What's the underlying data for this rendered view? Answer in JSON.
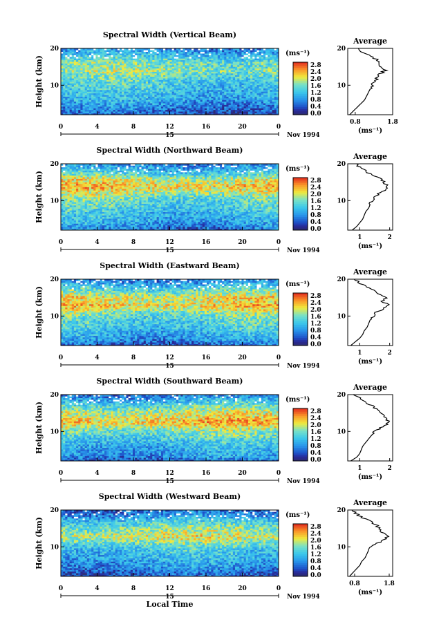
{
  "chart_data": [
    {
      "type": "heatmap",
      "title": "Spectral Width (Vertical Beam)",
      "ylabel": "Height (km)",
      "x_ticks": [
        "0",
        "4",
        "8",
        "12",
        "16",
        "20",
        "0"
      ],
      "date_day": "15",
      "date_label": "Nov 1994",
      "xlim": [
        0,
        24
      ],
      "ylim": [
        2,
        20
      ],
      "y_ticks": [
        "20",
        "10"
      ],
      "colorbar": {
        "unit": "(ms⁻¹)",
        "ticks": [
          "2.8",
          "2.4",
          "2.0",
          "1.6",
          "1.2",
          "0.8",
          "0.4",
          "0.0"
        ]
      },
      "profile": {
        "title": "Average",
        "xlabel": "(ms⁻¹)",
        "x_ticks": [
          "0.8",
          "1.8"
        ],
        "xlim": [
          0.6,
          1.8
        ],
        "y_ticks": [
          "20",
          "10"
        ],
        "points": [
          [
            0.65,
            2
          ],
          [
            0.75,
            3
          ],
          [
            0.85,
            4
          ],
          [
            0.95,
            5
          ],
          [
            1.05,
            6
          ],
          [
            1.1,
            7
          ],
          [
            1.15,
            8
          ],
          [
            1.2,
            9
          ],
          [
            1.25,
            10
          ],
          [
            1.3,
            11
          ],
          [
            1.4,
            12
          ],
          [
            1.45,
            13
          ],
          [
            1.6,
            14
          ],
          [
            1.45,
            15
          ],
          [
            1.5,
            16
          ],
          [
            1.35,
            17
          ],
          [
            1.2,
            18
          ],
          [
            1.0,
            19
          ],
          [
            0.9,
            20
          ]
        ]
      }
    },
    {
      "type": "heatmap",
      "title": "Spectral Width (Northward Beam)",
      "ylabel": "Height (km)",
      "x_ticks": [
        "0",
        "4",
        "8",
        "12",
        "16",
        "20",
        "0"
      ],
      "date_day": "15",
      "date_label": "Nov 1994",
      "xlim": [
        0,
        24
      ],
      "ylim": [
        2,
        20
      ],
      "y_ticks": [
        "20",
        "10"
      ],
      "colorbar": {
        "unit": "(ms⁻¹)",
        "ticks": [
          "2.8",
          "2.4",
          "2.0",
          "1.6",
          "1.2",
          "0.8",
          "0.4",
          "0.0"
        ]
      },
      "profile": {
        "title": "Average",
        "xlabel": "(ms⁻¹)",
        "x_ticks": [
          "1",
          "2"
        ],
        "xlim": [
          0.6,
          2.1
        ],
        "y_ticks": [
          "20",
          "10"
        ],
        "points": [
          [
            0.75,
            2
          ],
          [
            0.9,
            3
          ],
          [
            1.0,
            4
          ],
          [
            1.1,
            5
          ],
          [
            1.15,
            6
          ],
          [
            1.2,
            7
          ],
          [
            1.3,
            8
          ],
          [
            1.35,
            9
          ],
          [
            1.4,
            10
          ],
          [
            1.5,
            11
          ],
          [
            1.65,
            12
          ],
          [
            1.85,
            13
          ],
          [
            1.95,
            14
          ],
          [
            1.8,
            15
          ],
          [
            1.7,
            16
          ],
          [
            1.4,
            17
          ],
          [
            1.2,
            18
          ],
          [
            1.0,
            19
          ],
          [
            0.9,
            20
          ]
        ]
      }
    },
    {
      "type": "heatmap",
      "title": "Spectral Width (Eastward Beam)",
      "ylabel": "Height (km)",
      "x_ticks": [
        "0",
        "4",
        "8",
        "12",
        "16",
        "20",
        "0"
      ],
      "date_day": "15",
      "date_label": "Nov 1994",
      "xlim": [
        0,
        24
      ],
      "ylim": [
        2,
        20
      ],
      "y_ticks": [
        "20",
        "10"
      ],
      "colorbar": {
        "unit": "(ms⁻¹)",
        "ticks": [
          "2.8",
          "2.4",
          "2.0",
          "1.6",
          "1.2",
          "0.8",
          "0.4",
          "0.0"
        ]
      },
      "profile": {
        "title": "Average",
        "xlabel": "(ms⁻¹)",
        "x_ticks": [
          "1",
          "2"
        ],
        "xlim": [
          0.6,
          2.1
        ],
        "y_ticks": [
          "20",
          "10"
        ],
        "points": [
          [
            0.7,
            2
          ],
          [
            0.85,
            3
          ],
          [
            1.0,
            4
          ],
          [
            1.1,
            5
          ],
          [
            1.15,
            6
          ],
          [
            1.25,
            7
          ],
          [
            1.3,
            8
          ],
          [
            1.35,
            9
          ],
          [
            1.45,
            10
          ],
          [
            1.55,
            11
          ],
          [
            1.8,
            12
          ],
          [
            1.95,
            13
          ],
          [
            1.75,
            14
          ],
          [
            1.9,
            15
          ],
          [
            1.6,
            16
          ],
          [
            1.45,
            17
          ],
          [
            1.2,
            18
          ],
          [
            1.0,
            19
          ],
          [
            0.85,
            20
          ]
        ]
      }
    },
    {
      "type": "heatmap",
      "title": "Spectral Width (Southward Beam)",
      "ylabel": "Height (km)",
      "x_ticks": [
        "0",
        "4",
        "8",
        "12",
        "16",
        "20",
        "0"
      ],
      "date_day": "15",
      "date_label": "Nov 1994",
      "xlim": [
        0,
        24
      ],
      "ylim": [
        2,
        20
      ],
      "y_ticks": [
        "20",
        "10"
      ],
      "colorbar": {
        "unit": "(ms⁻¹)",
        "ticks": [
          "2.8",
          "2.4",
          "2.0",
          "1.6",
          "1.2",
          "0.8",
          "0.4",
          "0.0"
        ]
      },
      "profile": {
        "title": "Average",
        "xlabel": "(ms⁻¹)",
        "x_ticks": [
          "1",
          "2"
        ],
        "xlim": [
          0.6,
          2.1
        ],
        "y_ticks": [
          "20",
          "10"
        ],
        "points": [
          [
            0.7,
            2
          ],
          [
            0.9,
            3
          ],
          [
            1.0,
            4
          ],
          [
            1.05,
            5
          ],
          [
            1.1,
            6
          ],
          [
            1.2,
            7
          ],
          [
            1.3,
            8
          ],
          [
            1.4,
            9
          ],
          [
            1.5,
            10
          ],
          [
            1.7,
            11
          ],
          [
            1.9,
            12
          ],
          [
            1.95,
            13
          ],
          [
            1.8,
            14
          ],
          [
            1.75,
            15
          ],
          [
            1.55,
            16
          ],
          [
            1.4,
            17
          ],
          [
            1.2,
            18
          ],
          [
            1.0,
            19
          ],
          [
            0.8,
            20
          ]
        ]
      }
    },
    {
      "type": "heatmap",
      "title": "Spectral Width (Westward Beam)",
      "ylabel": "Height (km)",
      "x_ticks": [
        "0",
        "4",
        "8",
        "12",
        "16",
        "20",
        "0"
      ],
      "date_day": "15",
      "date_label": "Nov 1994",
      "xlim": [
        0,
        24
      ],
      "ylim": [
        2,
        20
      ],
      "y_ticks": [
        "20",
        "10"
      ],
      "colorbar": {
        "unit": "(ms⁻¹)",
        "ticks": [
          "2.8",
          "2.4",
          "2.0",
          "1.6",
          "1.2",
          "0.8",
          "0.4",
          "0.0"
        ]
      },
      "profile": {
        "title": "Average",
        "xlabel": "(ms⁻¹)",
        "x_ticks": [
          "0.8",
          "1.8"
        ],
        "xlim": [
          0.6,
          1.9
        ],
        "y_ticks": [
          "20",
          "10"
        ],
        "points": [
          [
            0.65,
            2
          ],
          [
            0.75,
            3
          ],
          [
            0.85,
            4
          ],
          [
            0.95,
            5
          ],
          [
            1.0,
            6
          ],
          [
            1.1,
            7
          ],
          [
            1.15,
            8
          ],
          [
            1.2,
            9
          ],
          [
            1.3,
            10
          ],
          [
            1.45,
            11
          ],
          [
            1.65,
            12
          ],
          [
            1.75,
            13
          ],
          [
            1.6,
            14
          ],
          [
            1.55,
            15
          ],
          [
            1.4,
            16
          ],
          [
            1.25,
            17
          ],
          [
            1.0,
            18
          ],
          [
            0.85,
            19
          ],
          [
            0.75,
            20
          ]
        ]
      }
    }
  ],
  "xlabel": "Local Time"
}
